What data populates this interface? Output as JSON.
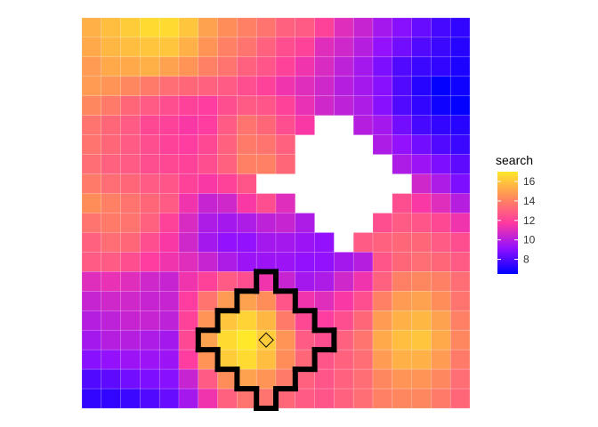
{
  "chart_data": {
    "type": "heatmap",
    "title": "",
    "xlabel": "",
    "ylabel": "",
    "grid": false,
    "legend": {
      "title": "search",
      "position": "right",
      "ticks": [
        8,
        10,
        12,
        14,
        16
      ],
      "range": [
        6.5,
        17
      ],
      "colors": [
        "#0000ff",
        "#9010ff",
        "#ff3aa0",
        "#ff8c5a",
        "#ffe82a"
      ]
    },
    "grid_size": {
      "cols": 20,
      "rows": 20
    },
    "values": [
      [
        15.4,
        15.8,
        16.2,
        16.6,
        16.6,
        16.0,
        15.0,
        14.4,
        14.0,
        13.6,
        13.0,
        12.8,
        12.0,
        11.0,
        10.4,
        9.6,
        9.0,
        8.4,
        7.8,
        7.4
      ],
      [
        15.2,
        15.6,
        15.8,
        16.0,
        16.0,
        15.4,
        14.6,
        14.0,
        13.6,
        13.0,
        12.4,
        12.0,
        11.0,
        10.6,
        10.0,
        9.2,
        8.6,
        8.0,
        7.6,
        7.2
      ],
      [
        14.8,
        15.2,
        15.2,
        15.4,
        15.0,
        14.6,
        14.0,
        13.6,
        13.0,
        12.6,
        12.0,
        11.4,
        10.8,
        10.2,
        9.6,
        8.8,
        8.0,
        7.6,
        7.4,
        7.0
      ],
      [
        14.8,
        14.6,
        14.2,
        13.8,
        13.4,
        13.2,
        13.0,
        12.8,
        12.4,
        12.0,
        11.4,
        11.0,
        10.6,
        10.0,
        9.6,
        9.0,
        8.0,
        7.2,
        6.6,
        6.8
      ],
      [
        14.2,
        13.8,
        13.2,
        12.8,
        12.4,
        12.0,
        11.8,
        12.4,
        12.8,
        12.6,
        12.0,
        11.2,
        10.6,
        10.2,
        9.8,
        9.0,
        8.0,
        7.4,
        6.8,
        6.6
      ],
      [
        13.6,
        13.2,
        12.8,
        12.2,
        12.0,
        11.6,
        11.8,
        12.8,
        13.6,
        13.2,
        12.4,
        11.6,
        null,
        null,
        10.0,
        9.6,
        8.6,
        7.8,
        7.4,
        7.2
      ],
      [
        13.6,
        13.2,
        12.8,
        12.4,
        12.0,
        11.8,
        12.2,
        13.0,
        13.8,
        13.6,
        13.0,
        null,
        null,
        null,
        null,
        9.8,
        9.2,
        8.6,
        8.0,
        7.6
      ],
      [
        13.4,
        13.0,
        12.8,
        12.4,
        12.2,
        12.0,
        12.4,
        13.0,
        14.0,
        14.0,
        13.2,
        null,
        null,
        null,
        null,
        null,
        9.8,
        9.4,
        8.8,
        8.2
      ],
      [
        13.8,
        13.4,
        13.2,
        12.8,
        12.6,
        12.0,
        11.6,
        12.0,
        12.6,
        null,
        null,
        null,
        null,
        null,
        null,
        null,
        null,
        10.6,
        9.8,
        8.8
      ],
      [
        14.4,
        14.0,
        13.6,
        13.2,
        12.8,
        11.4,
        10.4,
        10.6,
        11.6,
        12.4,
        11.0,
        null,
        null,
        null,
        null,
        null,
        12.4,
        11.6,
        11.0,
        10.0
      ],
      [
        13.6,
        13.8,
        13.6,
        13.0,
        12.0,
        10.8,
        9.8,
        9.6,
        9.8,
        10.2,
        10.4,
        9.8,
        null,
        null,
        null,
        12.4,
        12.8,
        12.6,
        12.2,
        11.4
      ],
      [
        13.0,
        13.4,
        13.2,
        12.4,
        11.6,
        10.6,
        9.6,
        9.2,
        9.2,
        9.6,
        9.6,
        9.4,
        9.2,
        null,
        12.8,
        13.0,
        13.2,
        13.2,
        12.8,
        12.4
      ],
      [
        12.8,
        12.8,
        12.4,
        11.8,
        11.4,
        11.0,
        10.4,
        9.8,
        9.4,
        9.4,
        9.4,
        9.2,
        9.2,
        9.6,
        10.0,
        12.6,
        13.2,
        13.4,
        13.2,
        12.8
      ],
      [
        11.0,
        11.2,
        11.0,
        10.6,
        10.4,
        11.4,
        12.0,
        12.8,
        12.4,
        11.4,
        10.4,
        9.6,
        9.8,
        10.6,
        11.4,
        13.0,
        14.0,
        14.2,
        14.0,
        13.4
      ],
      [
        10.4,
        10.6,
        10.6,
        10.4,
        10.4,
        11.8,
        13.6,
        14.8,
        15.0,
        14.4,
        12.6,
        11.4,
        11.0,
        11.6,
        12.4,
        14.0,
        14.8,
        15.0,
        14.4,
        13.6
      ],
      [
        10.0,
        10.2,
        10.4,
        10.4,
        10.2,
        12.0,
        14.6,
        16.0,
        16.4,
        15.6,
        13.8,
        12.2,
        11.8,
        12.4,
        13.2,
        14.8,
        15.4,
        15.6,
        15.0,
        14.0
      ],
      [
        9.6,
        10.0,
        10.0,
        9.8,
        9.6,
        12.2,
        15.0,
        16.6,
        17.0,
        16.2,
        14.6,
        12.8,
        12.4,
        13.0,
        13.6,
        15.2,
        15.8,
        16.0,
        15.2,
        14.2
      ],
      [
        9.0,
        9.2,
        9.4,
        9.4,
        9.4,
        11.8,
        14.6,
        16.2,
        16.6,
        15.8,
        14.4,
        13.2,
        12.6,
        13.0,
        13.4,
        14.8,
        15.4,
        15.4,
        14.8,
        13.8
      ],
      [
        8.0,
        8.2,
        8.6,
        8.8,
        9.0,
        10.4,
        12.8,
        14.4,
        15.0,
        14.6,
        13.8,
        13.0,
        12.6,
        13.0,
        13.4,
        14.2,
        14.6,
        14.6,
        14.2,
        13.4
      ],
      [
        7.4,
        7.4,
        7.6,
        8.0,
        8.4,
        9.6,
        11.4,
        13.0,
        13.6,
        13.6,
        13.2,
        12.8,
        12.6,
        13.0,
        13.4,
        14.0,
        14.2,
        14.2,
        13.8,
        13.2
      ]
    ],
    "outlined_region_rows": [
      [
        9,
        9
      ],
      [
        8,
        10
      ],
      [
        7,
        11
      ],
      [
        6,
        12
      ],
      [
        7,
        11
      ],
      [
        8,
        10
      ],
      [
        9,
        9
      ]
    ],
    "outlined_region_start_row": 13,
    "marker": {
      "col": 9,
      "row": 16,
      "shape": "diamond"
    }
  }
}
